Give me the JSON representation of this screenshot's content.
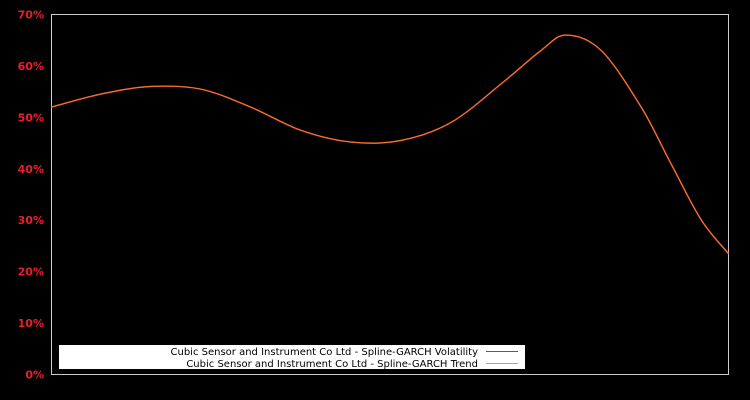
{
  "chart_data": {
    "type": "line",
    "title": "",
    "xlabel": "",
    "ylabel": "",
    "ylim": [
      0,
      70
    ],
    "y_ticks": [
      "0%",
      "10%",
      "20%",
      "30%",
      "40%",
      "50%",
      "60%",
      "70%"
    ],
    "grid": false,
    "legend_position": "bottom-left inside",
    "x": [
      0,
      0.072,
      0.146,
      0.22,
      0.294,
      0.368,
      0.442,
      0.516,
      0.59,
      0.664,
      0.723,
      0.76,
      0.812,
      0.871,
      0.915,
      0.96,
      1.0
    ],
    "series": [
      {
        "name": "Cubic Sensor and Instrument Co Ltd - Spline-GARCH Volatility",
        "color": "#e8202a",
        "values": [
          52,
          54.5,
          56,
          55.5,
          52,
          47.5,
          45.2,
          45.5,
          49,
          56.5,
          63,
          66,
          63,
          52,
          41,
          30,
          23.5
        ]
      },
      {
        "name": "Cubic Sensor and Instrument Co Ltd - Spline-GARCH Trend",
        "color": "#e0a030",
        "values": [
          52,
          54.5,
          56,
          55.5,
          52,
          47.5,
          45.2,
          45.5,
          49,
          56.5,
          63,
          66,
          63,
          52,
          41,
          30,
          23.5
        ]
      }
    ]
  },
  "colors": {
    "background": "#000000",
    "axis": "#cccccc",
    "tick_label": "#e8202a",
    "line_drawn": "#e8782a"
  }
}
